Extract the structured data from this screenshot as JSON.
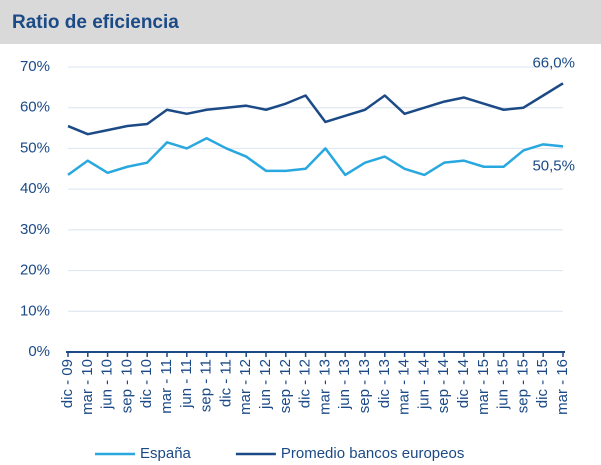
{
  "chart_data": {
    "type": "line",
    "title": "Ratio de eficiencia",
    "categories": [
      "dic - 09",
      "mar - 10",
      "jun - 10",
      "sep - 10",
      "dic - 10",
      "mar - 11",
      "jun - 11",
      "sep - 11",
      "dic - 11",
      "mar - 12",
      "jun - 12",
      "sep - 12",
      "dic - 12",
      "mar - 13",
      "jun - 13",
      "sep - 13",
      "dic - 13",
      "mar - 14",
      "jun - 14",
      "sep - 14",
      "dic - 14",
      "mar - 15",
      "jun - 15",
      "sep - 15",
      "dic - 15",
      "mar - 16"
    ],
    "series": [
      {
        "name": "España",
        "color": "#29a8e0",
        "values": [
          43.5,
          47,
          44,
          45.5,
          46.5,
          51.5,
          50,
          52.5,
          50,
          48,
          44.5,
          44.5,
          45,
          50,
          43.5,
          46.5,
          48,
          45,
          43.5,
          46.5,
          47,
          45.5,
          45.5,
          49.5,
          51,
          50.5
        ],
        "value_labels": [
          null,
          null,
          null,
          null,
          null,
          null,
          null,
          null,
          null,
          null,
          null,
          null,
          null,
          null,
          null,
          null,
          null,
          null,
          null,
          null,
          null,
          null,
          null,
          null,
          null,
          "50,5%"
        ]
      },
      {
        "name": "Promedio bancos europeos",
        "color": "#1b4a86",
        "values": [
          55.5,
          53.5,
          54.5,
          55.5,
          56,
          59.5,
          58.5,
          59.5,
          60,
          60.5,
          59.5,
          61,
          63,
          56.5,
          58,
          59.5,
          63,
          58.5,
          60,
          61.5,
          62.5,
          61,
          59.5,
          60,
          63,
          66
        ],
        "value_labels": [
          null,
          null,
          null,
          null,
          null,
          null,
          null,
          null,
          null,
          null,
          null,
          null,
          null,
          null,
          null,
          null,
          null,
          null,
          null,
          null,
          null,
          null,
          null,
          null,
          null,
          "66,0%"
        ]
      }
    ],
    "ylim": [
      0,
      70
    ],
    "yticks": [
      {
        "value": 0,
        "label": "0%"
      },
      {
        "value": 10,
        "label": "10%"
      },
      {
        "value": 20,
        "label": "20%"
      },
      {
        "value": 30,
        "label": "30%"
      },
      {
        "value": 40,
        "label": "40%"
      },
      {
        "value": 50,
        "label": "50%"
      },
      {
        "value": 60,
        "label": "60%"
      },
      {
        "value": 70,
        "label": "70%"
      }
    ],
    "grid": true,
    "legend": "bottom"
  }
}
